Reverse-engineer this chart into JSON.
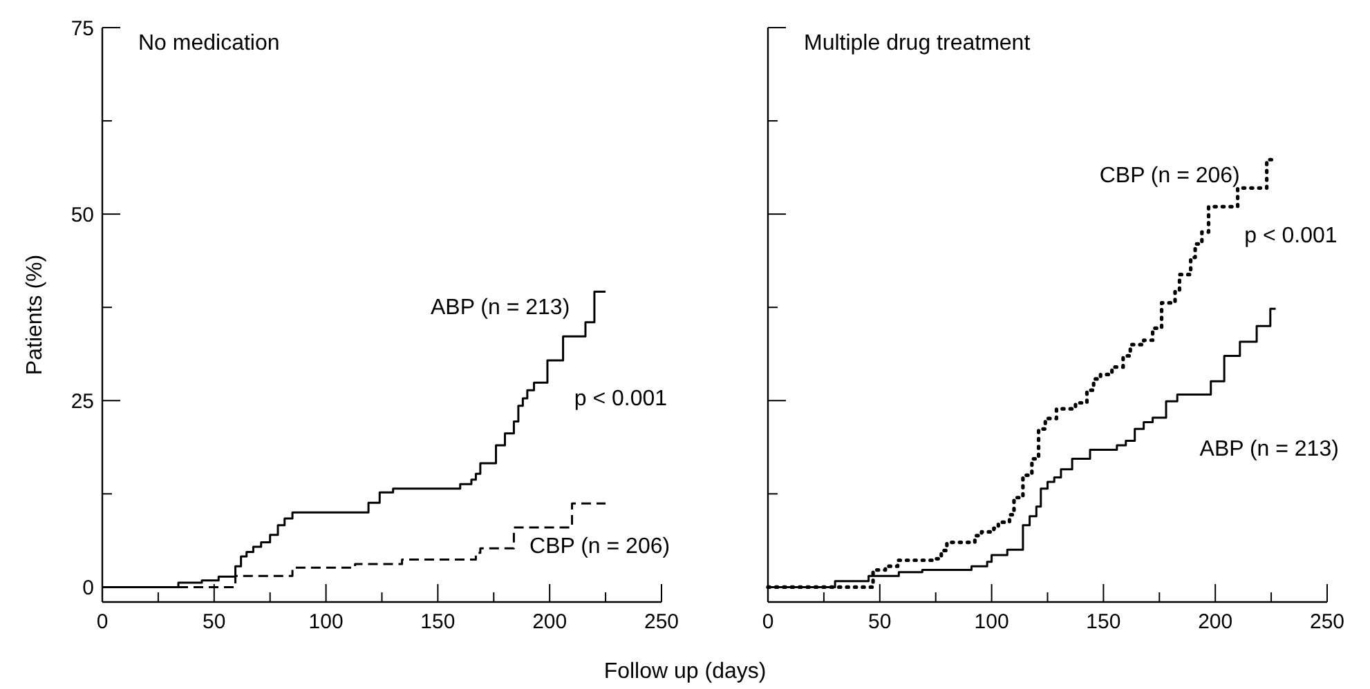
{
  "chart_data": [
    {
      "type": "step",
      "title": "No medication",
      "xlabel": "Follow up (days)",
      "ylabel": "Patients (%)",
      "xlim": [
        0,
        250
      ],
      "ylim": [
        -2,
        75
      ],
      "xticks": [
        0,
        {
          "value": 25,
          "label": null
        },
        50,
        {
          "value": 75,
          "label": null
        },
        100,
        {
          "value": 125,
          "label": null
        },
        150,
        {
          "value": 175,
          "label": null
        },
        200,
        {
          "value": 225,
          "label": null
        },
        250
      ],
      "yticks": [
        0,
        {
          "value": 12.5,
          "label": null
        },
        25,
        {
          "value": 37.5,
          "label": null
        },
        50,
        {
          "value": 62.5,
          "label": null
        },
        75
      ],
      "marker": "none",
      "annotations": [
        "p < 0.001"
      ],
      "series": [
        {
          "name": "ABP (n = 213)",
          "color": "#000000",
          "line_style": "solid",
          "x": [
            0,
            34,
            44.5,
            52,
            59.5,
            62,
            64.5,
            67.5,
            71,
            75,
            78.5,
            81.5,
            85,
            119,
            124,
            130,
            160,
            165,
            167,
            169,
            176,
            180,
            184,
            186,
            188,
            190,
            193,
            199,
            206,
            216,
            220,
            225
          ],
          "values": [
            0,
            0.6,
            0.9,
            1.4,
            2.8,
            4.1,
            4.7,
            5.4,
            6,
            7,
            8.3,
            9.2,
            10,
            11.3,
            12.7,
            13.2,
            13.8,
            14.4,
            15.2,
            16.6,
            19,
            20.6,
            22.2,
            24.3,
            25.3,
            26.4,
            27.4,
            30.4,
            33.6,
            35.5,
            39.6,
            39.6
          ]
        },
        {
          "name": "CBP (n = 206)",
          "color": "#000000",
          "line_style": "dashed",
          "x": [
            0,
            59.5,
            85,
            113,
            134,
            167,
            169,
            184,
            210,
            225
          ],
          "values": [
            0,
            1.5,
            2.6,
            3.1,
            3.7,
            4.6,
            5.2,
            8.0,
            11.2,
            11.2
          ]
        }
      ]
    },
    {
      "type": "step",
      "title": "Multiple drug treatment",
      "xlim": [
        0,
        250
      ],
      "ylim": [
        -2,
        75
      ],
      "xticks": [
        0,
        {
          "value": 25,
          "label": null
        },
        50,
        {
          "value": 75,
          "label": null
        },
        100,
        {
          "value": 125,
          "label": null
        },
        150,
        {
          "value": 175,
          "label": null
        },
        200,
        {
          "value": 225,
          "label": null
        },
        250
      ],
      "yticks": [
        0,
        {
          "value": 12.5,
          "label": null
        },
        25,
        {
          "value": 37.5,
          "label": null
        },
        50,
        {
          "value": 62.5,
          "label": null
        },
        75
      ],
      "tick_labels": "x",
      "marker": "none",
      "annotations": [
        "p < 0.001"
      ],
      "series": [
        {
          "name": "ABP (n = 213)",
          "color": "#000000",
          "line_style": "solid",
          "x": [
            0,
            30,
            45,
            58.5,
            69,
            91,
            98,
            100,
            107,
            114,
            117,
            120,
            122,
            125,
            128,
            131,
            136,
            144,
            156,
            160,
            164,
            168,
            172,
            178,
            183,
            198,
            204,
            211,
            218.5,
            224.6,
            227
          ],
          "values": [
            0,
            0.8,
            1.5,
            2.0,
            2.3,
            2.8,
            3.4,
            4.3,
            5.0,
            8.3,
            9.5,
            10.8,
            13.2,
            14.1,
            14.7,
            15.8,
            17.2,
            18.4,
            19.0,
            19.6,
            21.2,
            22.1,
            22.7,
            24.9,
            25.8,
            27.6,
            31,
            32.9,
            35,
            37.3,
            37.3
          ]
        },
        {
          "name": "CBP (n = 206)",
          "color": "#000000",
          "line_style": "dotted",
          "x": [
            0,
            47,
            52.5,
            58,
            74.5,
            77.5,
            80,
            92.5,
            95.5,
            101,
            103,
            108,
            110,
            114,
            118,
            121,
            124,
            129,
            137.5,
            142.6,
            145.6,
            148.7,
            153.8,
            158.8,
            162,
            168,
            172,
            176,
            182,
            184,
            189,
            191,
            194,
            197,
            210,
            223,
            227
          ],
          "values": [
            0,
            2.3,
            2.8,
            3.6,
            3.8,
            4.9,
            6.0,
            6.9,
            7.4,
            7.9,
            8.7,
            9.7,
            12,
            15,
            17.2,
            21.2,
            22.6,
            23.9,
            24.7,
            26.4,
            27.9,
            28.5,
            29.5,
            31.0,
            32.5,
            33.1,
            34.7,
            38.1,
            39.6,
            41.9,
            44.2,
            46.0,
            47.6,
            51,
            53.5,
            57.3,
            57.3
          ]
        }
      ]
    }
  ]
}
